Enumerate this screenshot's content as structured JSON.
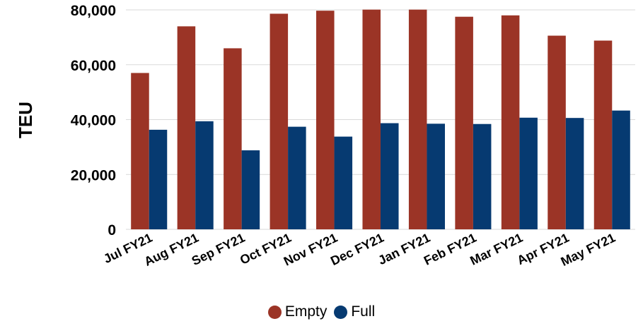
{
  "chart_data": {
    "type": "bar",
    "categories": [
      "Jul FY21",
      "Aug FY21",
      "Sep FY21",
      "Oct FY21",
      "Nov FY21",
      "Dec FY21",
      "Jan FY21",
      "Feb FY21",
      "Mar FY21",
      "Apr FY21",
      "May FY21"
    ],
    "series": [
      {
        "name": "Empty",
        "color": "#9b3426",
        "values": [
          57000,
          74000,
          66000,
          78600,
          79700,
          80100,
          80100,
          77500,
          78000,
          70600,
          68800
        ]
      },
      {
        "name": "Full",
        "color": "#063a71",
        "values": [
          36300,
          39400,
          28800,
          37400,
          33800,
          38700,
          38500,
          38400,
          40700,
          40600,
          43300
        ]
      }
    ],
    "ylabel": "TEU",
    "xlabel": "",
    "ylim": [
      0,
      80000
    ],
    "yticks": [
      0,
      20000,
      40000,
      60000,
      80000
    ],
    "ytick_labels": [
      "0",
      "20,000",
      "40,000",
      "60,000",
      "80,000"
    ],
    "grid": true,
    "legend_position": "bottom"
  }
}
